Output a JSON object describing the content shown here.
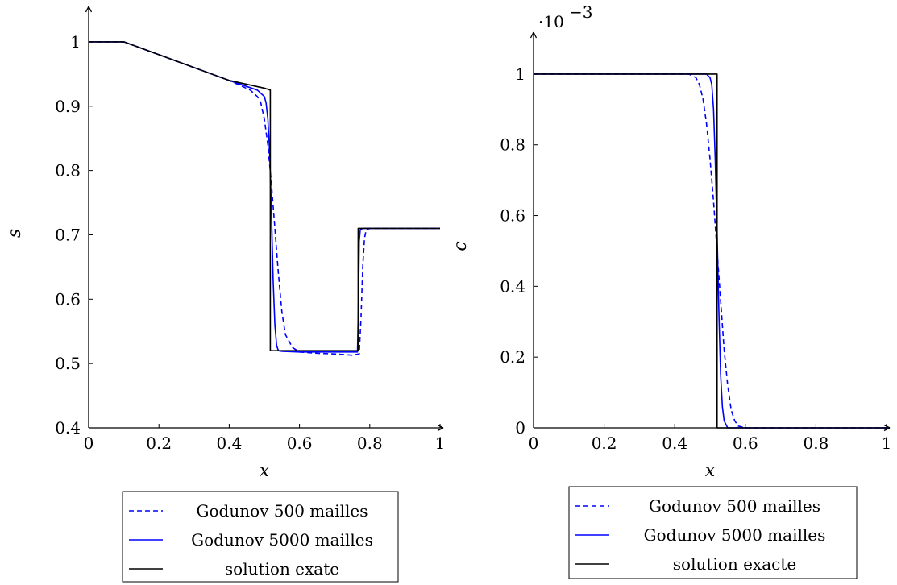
{
  "chart_data": [
    {
      "type": "line",
      "xlabel": "x",
      "ylabel": "s",
      "xlim": [
        0,
        1
      ],
      "ylim": [
        0.4,
        1.05
      ],
      "xticks": [
        "0",
        "0.2",
        "0.4",
        "0.6",
        "0.8",
        "1"
      ],
      "xtick_values": [
        0,
        0.2,
        0.4,
        0.6,
        0.8,
        1
      ],
      "yticks": [
        "0.4",
        "0.5",
        "0.6",
        "0.7",
        "0.8",
        "0.9",
        "1"
      ],
      "ytick_values": [
        0.4,
        0.5,
        0.6,
        0.7,
        0.8,
        0.9,
        1.0
      ],
      "legend": [
        "Godunov 500 mailles",
        "Godunov 5000 mailles",
        "solution exate"
      ],
      "legend_position": "below",
      "series": [
        {
          "name": "Godunov 500 mailles",
          "color": "#0000ff",
          "dash": true,
          "x": [
            0,
            0.1,
            0.2,
            0.3,
            0.4,
            0.44,
            0.46,
            0.48,
            0.49,
            0.5,
            0.51,
            0.52,
            0.53,
            0.54,
            0.55,
            0.56,
            0.58,
            0.6,
            0.65,
            0.7,
            0.75,
            0.77,
            0.775,
            0.78,
            0.785,
            0.79,
            0.8,
            0.9,
            1.0
          ],
          "y": [
            1.0,
            1.0,
            0.98,
            0.96,
            0.94,
            0.93,
            0.925,
            0.915,
            0.905,
            0.88,
            0.84,
            0.78,
            0.71,
            0.64,
            0.58,
            0.545,
            0.525,
            0.518,
            0.516,
            0.515,
            0.513,
            0.515,
            0.57,
            0.65,
            0.695,
            0.708,
            0.71,
            0.71,
            0.71
          ]
        },
        {
          "name": "Godunov 5000 mailles",
          "color": "#0000ff",
          "dash": false,
          "x": [
            0,
            0.1,
            0.2,
            0.3,
            0.4,
            0.48,
            0.5,
            0.505,
            0.51,
            0.515,
            0.52,
            0.525,
            0.53,
            0.535,
            0.54,
            0.55,
            0.6,
            0.7,
            0.765,
            0.768,
            0.77,
            0.773,
            0.78,
            0.9,
            1.0
          ],
          "y": [
            1.0,
            1.0,
            0.98,
            0.96,
            0.94,
            0.925,
            0.915,
            0.905,
            0.88,
            0.83,
            0.74,
            0.63,
            0.56,
            0.528,
            0.52,
            0.519,
            0.518,
            0.518,
            0.518,
            0.6,
            0.69,
            0.708,
            0.71,
            0.71,
            0.71
          ]
        },
        {
          "name": "solution exate",
          "color": "#000000",
          "dash": false,
          "x": [
            0,
            0.1,
            0.2,
            0.3,
            0.4,
            0.5,
            0.517,
            0.517,
            0.767,
            0.767,
            1.0
          ],
          "y": [
            1.0,
            1.0,
            0.98,
            0.96,
            0.94,
            0.928,
            0.925,
            0.52,
            0.52,
            0.71,
            0.71
          ]
        }
      ]
    },
    {
      "type": "line",
      "xlabel": "x",
      "ylabel": "c",
      "y_multiplier": "·10",
      "y_multiplier_exp": "−3",
      "xlim": [
        0,
        1
      ],
      "ylim": [
        0,
        1.1
      ],
      "xticks": [
        "0",
        "0.2",
        "0.4",
        "0.6",
        "0.8",
        "1"
      ],
      "xtick_values": [
        0,
        0.2,
        0.4,
        0.6,
        0.8,
        1
      ],
      "yticks": [
        "0",
        "0.2",
        "0.4",
        "0.6",
        "0.8",
        "1"
      ],
      "ytick_values": [
        0,
        0.2,
        0.4,
        0.6,
        0.8,
        1.0
      ],
      "legend": [
        "Godunov 500 mailles",
        "Godunov 5000 mailles",
        "solution exacte"
      ],
      "legend_position": "below",
      "series": [
        {
          "name": "Godunov 500 mailles",
          "color": "#0000ff",
          "dash": true,
          "x": [
            0,
            0.44,
            0.46,
            0.47,
            0.48,
            0.49,
            0.5,
            0.51,
            0.52,
            0.53,
            0.54,
            0.55,
            0.56,
            0.57,
            0.58,
            0.6,
            1.0
          ],
          "y": [
            1.0,
            1.0,
            0.99,
            0.97,
            0.93,
            0.86,
            0.76,
            0.64,
            0.5,
            0.36,
            0.22,
            0.12,
            0.05,
            0.02,
            0.005,
            0.0,
            0.0
          ]
        },
        {
          "name": "Godunov 5000 mailles",
          "color": "#0000ff",
          "dash": false,
          "x": [
            0,
            0.49,
            0.5,
            0.505,
            0.51,
            0.515,
            0.52,
            0.525,
            0.53,
            0.535,
            0.54,
            0.55,
            1.0
          ],
          "y": [
            1.0,
            1.0,
            0.99,
            0.97,
            0.9,
            0.75,
            0.55,
            0.33,
            0.15,
            0.06,
            0.02,
            0.0,
            0.0
          ]
        },
        {
          "name": "solution exacte",
          "color": "#000000",
          "dash": false,
          "x": [
            0,
            0.52,
            0.52,
            1.0
          ],
          "y": [
            1.0,
            1.0,
            0.0,
            0.0
          ]
        }
      ]
    }
  ]
}
